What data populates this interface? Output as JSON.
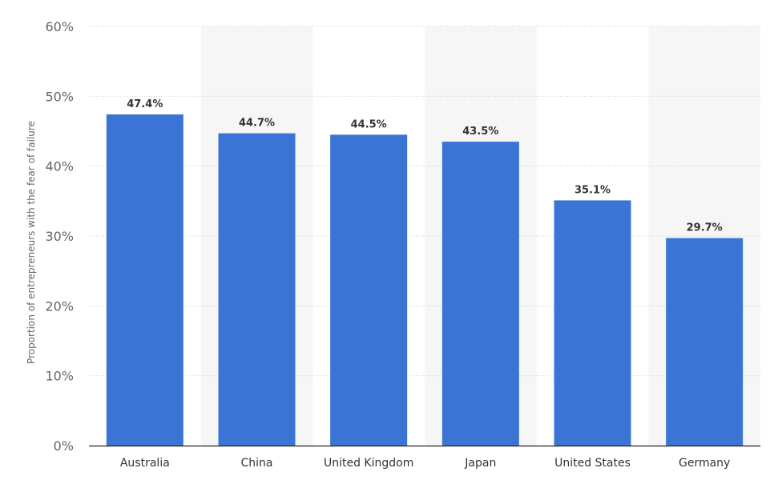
{
  "chart_data": {
    "type": "bar",
    "categories": [
      "Australia",
      "China",
      "United Kingdom",
      "Japan",
      "United States",
      "Germany"
    ],
    "values": [
      47.4,
      44.7,
      44.5,
      43.5,
      35.1,
      29.7
    ],
    "value_labels": [
      "47.4%",
      "44.7%",
      "44.5%",
      "43.5%",
      "35.1%",
      "29.7%"
    ],
    "ylabel": "Proportion of entrepreneurs with the fear of failure",
    "xlabel": "",
    "ylim": [
      0,
      60
    ],
    "yticks": [
      0,
      10,
      20,
      30,
      40,
      50,
      60
    ],
    "ytick_labels": [
      "0%",
      "10%",
      "20%",
      "30%",
      "40%",
      "50%",
      "60%"
    ],
    "grid": true,
    "legend": "none",
    "bar_color": "#3a75d6",
    "band_color": "#f6f6f6"
  }
}
